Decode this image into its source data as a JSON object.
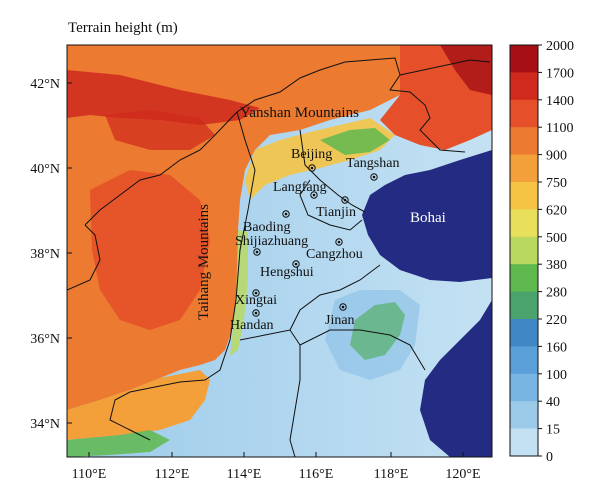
{
  "title": "Terrain height (m)",
  "y_axis_labels": [
    "42°N",
    "40°N",
    "38°N",
    "36°N",
    "34°N"
  ],
  "x_axis_labels": [
    "110°E",
    "112°E",
    "114°E",
    "116°E",
    "118°E",
    "120°E"
  ],
  "colorbar": {
    "labels": [
      "2000",
      "1700",
      "1400",
      "1100",
      "900",
      "750",
      "620",
      "500",
      "380",
      "280",
      "220",
      "160",
      "100",
      "40",
      "15",
      "0"
    ],
    "colors": [
      "#a50f15",
      "#cf2a1d",
      "#e5502a",
      "#ec7a30",
      "#f4a03a",
      "#f5c445",
      "#e8df5b",
      "#b9d860",
      "#5fb84e",
      "#4aa26c",
      "#3f86c4",
      "#5b9fd8",
      "#79b5e2",
      "#9ccbea",
      "#c4e1f3"
    ]
  },
  "regions": {
    "mountains": [
      {
        "id": "yanshan",
        "label": "Yanshan Mountains"
      },
      {
        "id": "taihang",
        "label": "Taihang Mountains"
      }
    ],
    "sea": {
      "label": "Bohai",
      "color": "#232b82"
    }
  },
  "cities": [
    {
      "id": "beijing",
      "label": "Beijing"
    },
    {
      "id": "tangshan",
      "label": "Tangshan"
    },
    {
      "id": "langfang",
      "label": "Langfang"
    },
    {
      "id": "tianjin",
      "label": "Tianjin"
    },
    {
      "id": "baoding",
      "label": "Baoding"
    },
    {
      "id": "shijiazhuang",
      "label": "Shijiazhuang"
    },
    {
      "id": "cangzhou",
      "label": "Cangzhou"
    },
    {
      "id": "hengshui",
      "label": "Hengshui"
    },
    {
      "id": "xingtai",
      "label": "Xingtai"
    },
    {
      "id": "handan",
      "label": "Handan"
    },
    {
      "id": "jinan",
      "label": "Jinan"
    }
  ]
}
